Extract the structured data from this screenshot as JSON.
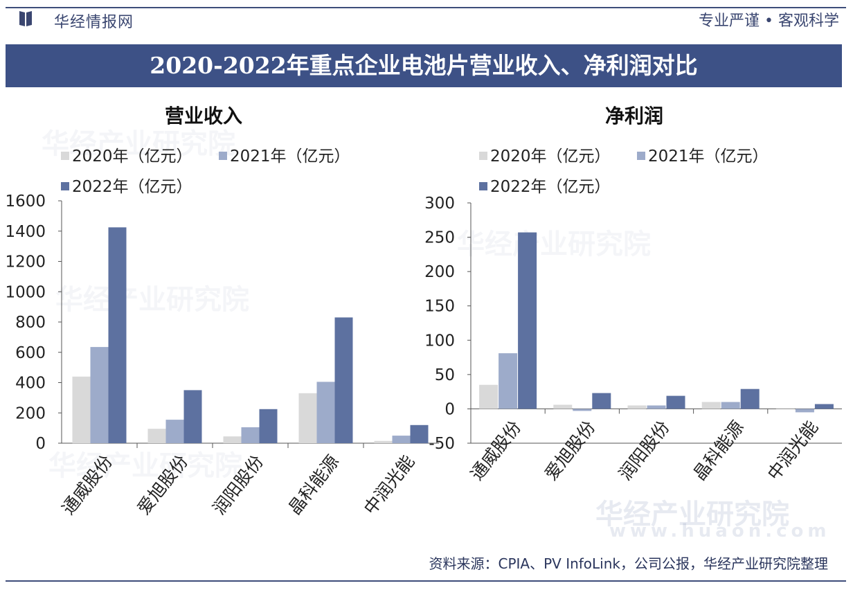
{
  "header": {
    "brand": "华经情报网",
    "slogan": "专业严谨 • 客观科学",
    "banner_title": "2020-2022年重点企业电池片营业收入、净利润对比"
  },
  "colors": {
    "banner": "#3d5186",
    "series_2020": "#d9d9d9",
    "series_2021": "#9dabca",
    "series_2022": "#5d71a0"
  },
  "watermark": {
    "cn": "华经产业研究院",
    "url": "www.huaon.com"
  },
  "source": "资料来源：CPIA、PV InfoLink，公司公报，华经产业研究院整理",
  "chart_data": [
    {
      "type": "bar",
      "title": "营业收入",
      "categories": [
        "通威股份",
        "爱旭股份",
        "润阳股份",
        "晶科能源",
        "中润光能"
      ],
      "series": [
        {
          "name": "2020年（亿元）",
          "values": [
            440,
            95,
            45,
            330,
            15
          ]
        },
        {
          "name": "2021年（亿元）",
          "values": [
            635,
            155,
            105,
            405,
            50
          ]
        },
        {
          "name": "2022年（亿元）",
          "values": [
            1425,
            350,
            225,
            830,
            120
          ]
        }
      ],
      "yticks": [
        "1600",
        "1400",
        "1200",
        "1000",
        "800",
        "600",
        "400",
        "200",
        "0"
      ],
      "ylim": [
        0,
        1600
      ],
      "xlabel": "",
      "ylabel": ""
    },
    {
      "type": "bar",
      "title": "净利润",
      "categories": [
        "通威股份",
        "爱旭股份",
        "润阳股份",
        "晶科能源",
        "中润光能"
      ],
      "series": [
        {
          "name": "2020年（亿元）",
          "values": [
            35,
            6,
            5,
            10,
            0
          ]
        },
        {
          "name": "2021年（亿元）",
          "values": [
            81,
            -3,
            5,
            10,
            -5
          ]
        },
        {
          "name": "2022年（亿元）",
          "values": [
            257,
            23,
            19,
            29,
            7
          ]
        }
      ],
      "yticks": [
        "300",
        "250",
        "200",
        "150",
        "100",
        "50",
        "0",
        "-50"
      ],
      "ylim": [
        -50,
        300
      ],
      "xlabel": "",
      "ylabel": ""
    }
  ]
}
